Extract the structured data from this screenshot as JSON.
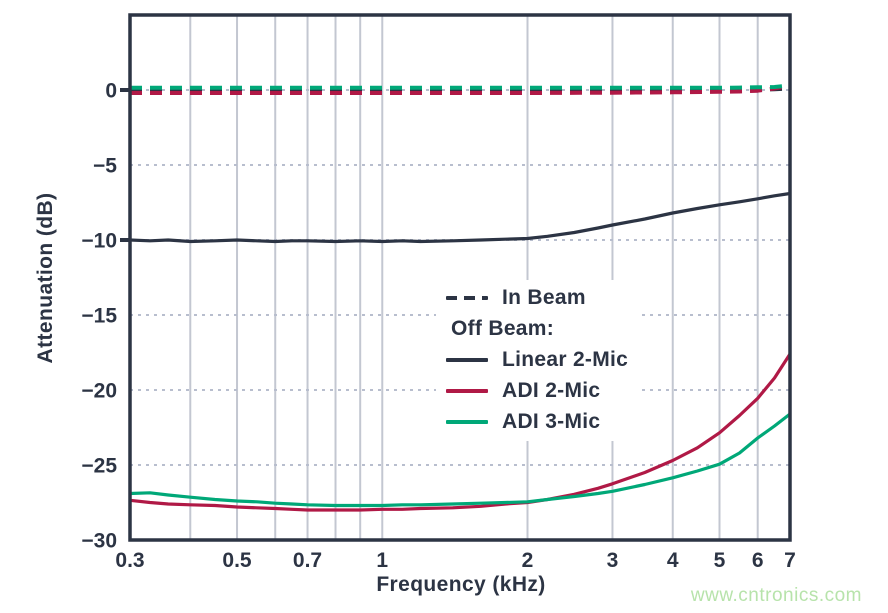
{
  "page": {
    "watermark_text": "www.cntronics.com"
  },
  "colors": {
    "navy": "#2c3444",
    "red": "#b01946",
    "green": "#00a878",
    "grid_vertical": "#c3c7d1",
    "grid_horizontal": "#b8bece",
    "watermark": "#b7e3ab",
    "background": "#ffffff"
  },
  "chart_data": {
    "type": "line",
    "title": "",
    "xlabel": "Frequency (kHz)",
    "ylabel": "Attenuation (dB)",
    "x_scale": "log",
    "xlim": [
      0.3,
      7
    ],
    "ylim": [
      -30,
      5
    ],
    "x_tick_labels": [
      0.3,
      0.5,
      0.7,
      1,
      2,
      3,
      4,
      5,
      6,
      7
    ],
    "x_gridlines": [
      0.4,
      0.5,
      0.6,
      0.7,
      0.8,
      0.9,
      1,
      2,
      3,
      4,
      5,
      6
    ],
    "y_tick_labels": [
      0,
      -5,
      -10,
      -15,
      -20,
      -25,
      -30
    ],
    "y_gridlines": [
      0,
      -5,
      -10,
      -15,
      -20,
      -25
    ],
    "y_axis_outer_ticks": [
      0,
      -10
    ],
    "grid": "vertical solid, horizontal dotted",
    "legend": {
      "position": "inside center-right",
      "in_beam_label": "In Beam",
      "off_beam_header": "Off Beam:",
      "entries": [
        "Linear 2-Mic",
        "ADI 2-Mic",
        "ADI 3-Mic"
      ]
    },
    "series": [
      {
        "name": "In Beam Linear 2-Mic",
        "style": "dashed",
        "color_key": "navy",
        "x": [
          0.3,
          1,
          2,
          3,
          4,
          5,
          5.5,
          6,
          6.5,
          7
        ],
        "y": [
          0,
          0,
          0,
          0,
          0,
          0,
          0,
          0.02,
          0.05,
          0.1
        ]
      },
      {
        "name": "In Beam ADI 2-Mic",
        "style": "dashed",
        "color_key": "red",
        "x": [
          0.3,
          1,
          2,
          3,
          4,
          5,
          5.5,
          6,
          6.5,
          7
        ],
        "y": [
          -0.2,
          -0.2,
          -0.2,
          -0.18,
          -0.15,
          -0.12,
          -0.1,
          -0.05,
          0.1,
          0.3
        ]
      },
      {
        "name": "In Beam ADI 3-Mic",
        "style": "dashed",
        "color_key": "green",
        "x": [
          0.3,
          1,
          2,
          3,
          4,
          5,
          5.5,
          6,
          6.5,
          7
        ],
        "y": [
          0.15,
          0.15,
          0.15,
          0.15,
          0.15,
          0.15,
          0.16,
          0.18,
          0.2,
          0.3
        ]
      },
      {
        "name": "Off Beam Linear 2-Mic",
        "style": "solid",
        "color_key": "navy",
        "x": [
          0.3,
          0.33,
          0.36,
          0.4,
          0.45,
          0.5,
          0.55,
          0.6,
          0.65,
          0.7,
          0.8,
          0.9,
          1.0,
          1.1,
          1.2,
          1.4,
          1.6,
          1.8,
          2.0,
          2.2,
          2.5,
          2.8,
          3.0,
          3.5,
          4.0,
          4.5,
          5.0,
          5.5,
          6.0,
          6.5,
          7.0
        ],
        "y": [
          -10.0,
          -10.05,
          -10.0,
          -10.1,
          -10.05,
          -10.0,
          -10.05,
          -10.1,
          -10.05,
          -10.05,
          -10.1,
          -10.05,
          -10.1,
          -10.05,
          -10.1,
          -10.05,
          -10.0,
          -9.95,
          -9.9,
          -9.75,
          -9.5,
          -9.2,
          -9.0,
          -8.6,
          -8.2,
          -7.9,
          -7.65,
          -7.45,
          -7.25,
          -7.05,
          -6.9
        ]
      },
      {
        "name": "Off Beam ADI 2-Mic",
        "style": "solid",
        "color_key": "red",
        "x": [
          0.3,
          0.33,
          0.36,
          0.4,
          0.45,
          0.5,
          0.55,
          0.6,
          0.65,
          0.7,
          0.8,
          0.9,
          1.0,
          1.1,
          1.2,
          1.4,
          1.6,
          1.8,
          2.0,
          2.2,
          2.5,
          2.8,
          3.0,
          3.5,
          4.0,
          4.5,
          5.0,
          5.5,
          6.0,
          6.5,
          7.0
        ],
        "y": [
          -27.35,
          -27.5,
          -27.6,
          -27.65,
          -27.7,
          -27.8,
          -27.85,
          -27.9,
          -27.95,
          -28.0,
          -28.0,
          -28.0,
          -27.95,
          -27.95,
          -27.9,
          -27.85,
          -27.75,
          -27.6,
          -27.5,
          -27.3,
          -26.95,
          -26.55,
          -26.25,
          -25.5,
          -24.7,
          -23.85,
          -22.85,
          -21.7,
          -20.55,
          -19.2,
          -17.6
        ]
      },
      {
        "name": "Off Beam ADI 3-Mic",
        "style": "solid",
        "color_key": "green",
        "x": [
          0.3,
          0.33,
          0.36,
          0.4,
          0.45,
          0.5,
          0.55,
          0.6,
          0.65,
          0.7,
          0.8,
          0.9,
          1.0,
          1.1,
          1.2,
          1.4,
          1.6,
          1.8,
          2.0,
          2.2,
          2.5,
          2.8,
          3.0,
          3.5,
          4.0,
          4.5,
          5.0,
          5.5,
          6.0,
          6.5,
          7.0
        ],
        "y": [
          -26.9,
          -26.85,
          -27.0,
          -27.15,
          -27.3,
          -27.4,
          -27.45,
          -27.55,
          -27.6,
          -27.65,
          -27.7,
          -27.7,
          -27.7,
          -27.65,
          -27.65,
          -27.6,
          -27.55,
          -27.5,
          -27.45,
          -27.3,
          -27.1,
          -26.9,
          -26.75,
          -26.3,
          -25.85,
          -25.4,
          -24.95,
          -24.2,
          -23.2,
          -22.4,
          -21.6
        ]
      }
    ]
  }
}
